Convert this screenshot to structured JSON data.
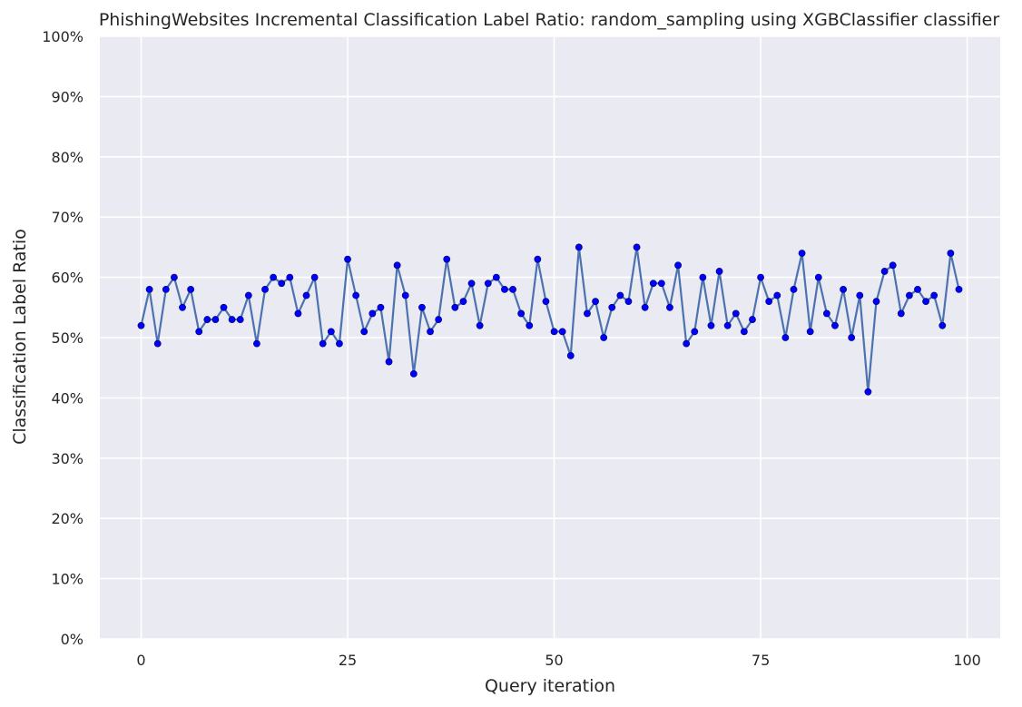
{
  "chart_data": {
    "type": "line",
    "title": "PhishingWebsites Incremental Classification Label Ratio: random_sampling using XGBClassifier classifier",
    "xlabel": "Query iteration",
    "ylabel": "Classification Label Ratio",
    "xlim": [
      -5,
      104
    ],
    "ylim": [
      0,
      1
    ],
    "xticks": [
      0,
      25,
      50,
      75,
      100
    ],
    "xtick_labels": [
      "0",
      "25",
      "50",
      "75",
      "100"
    ],
    "yticks": [
      0,
      0.1,
      0.2,
      0.3,
      0.4,
      0.5,
      0.6,
      0.7,
      0.8,
      0.9,
      1.0
    ],
    "ytick_labels": [
      "0%",
      "10%",
      "20%",
      "30%",
      "40%",
      "50%",
      "60%",
      "70%",
      "80%",
      "90%",
      "100%"
    ],
    "grid": true,
    "background": "#eaeaf2",
    "line_color": "#4c72b0",
    "marker_color": "#0000ff",
    "x": [
      0,
      1,
      2,
      3,
      4,
      5,
      6,
      7,
      8,
      9,
      10,
      11,
      12,
      13,
      14,
      15,
      16,
      17,
      18,
      19,
      20,
      21,
      22,
      23,
      24,
      25,
      26,
      27,
      28,
      29,
      30,
      31,
      32,
      33,
      34,
      35,
      36,
      37,
      38,
      39,
      40,
      41,
      42,
      43,
      44,
      45,
      46,
      47,
      48,
      49,
      50,
      51,
      52,
      53,
      54,
      55,
      56,
      57,
      58,
      59,
      60,
      61,
      62,
      63,
      64,
      65,
      66,
      67,
      68,
      69,
      70,
      71,
      72,
      73,
      74,
      75,
      76,
      77,
      78,
      79,
      80,
      81,
      82,
      83,
      84,
      85,
      86,
      87,
      88,
      89,
      90,
      91,
      92,
      93,
      94,
      95,
      96,
      97,
      98,
      99
    ],
    "values": [
      0.52,
      0.58,
      0.49,
      0.58,
      0.6,
      0.55,
      0.58,
      0.51,
      0.53,
      0.53,
      0.55,
      0.53,
      0.53,
      0.57,
      0.49,
      0.58,
      0.6,
      0.59,
      0.6,
      0.54,
      0.57,
      0.6,
      0.49,
      0.51,
      0.49,
      0.63,
      0.57,
      0.51,
      0.54,
      0.55,
      0.46,
      0.62,
      0.57,
      0.44,
      0.55,
      0.51,
      0.53,
      0.63,
      0.55,
      0.56,
      0.59,
      0.52,
      0.59,
      0.6,
      0.58,
      0.58,
      0.54,
      0.52,
      0.63,
      0.56,
      0.51,
      0.51,
      0.47,
      0.65,
      0.54,
      0.56,
      0.5,
      0.55,
      0.57,
      0.56,
      0.65,
      0.55,
      0.59,
      0.59,
      0.55,
      0.62,
      0.49,
      0.51,
      0.6,
      0.52,
      0.61,
      0.52,
      0.54,
      0.51,
      0.53,
      0.6,
      0.56,
      0.57,
      0.5,
      0.58,
      0.64,
      0.51,
      0.6,
      0.54,
      0.52,
      0.58,
      0.5,
      0.57,
      0.41,
      0.56,
      0.61,
      0.62,
      0.54,
      0.57,
      0.58,
      0.56,
      0.57,
      0.52,
      0.64,
      0.58
    ]
  }
}
